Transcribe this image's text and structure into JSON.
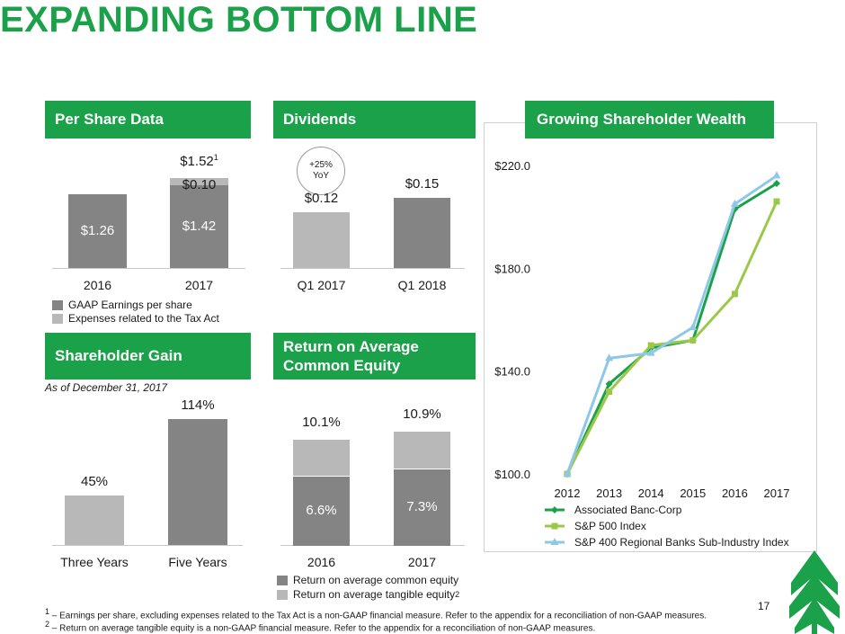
{
  "title": "EXPANDING BOTTOM LINE",
  "page_number": "17",
  "colors": {
    "brand_green": "#1aa14a",
    "dark_gray": "#848484",
    "light_gray": "#b8b8b8"
  },
  "sections": {
    "per_share": {
      "header": "Per Share Data",
      "total_label": "$1.52",
      "total_sup": "1",
      "legend": [
        "GAAP Earnings per share",
        "Expenses related to the Tax Act"
      ]
    },
    "dividends": {
      "header": "Dividends",
      "badge_line1": "+25%",
      "badge_line2": "YoY"
    },
    "shareholder_gain": {
      "header": "Shareholder Gain",
      "subtitle": "As of December 31, 2017"
    },
    "roe": {
      "header_line1": "Return on Average",
      "header_line2": "Common Equity",
      "legend": [
        "Return on average common equity",
        "Return on average tangible equity"
      ],
      "legend_sup": "2"
    },
    "wealth": {
      "header": "Growing Shareholder Wealth"
    }
  },
  "footnotes": [
    {
      "mark": "1",
      "text": "– Earnings per share, excluding expenses related to the Tax Act is a non-GAAP financial measure. Refer to the appendix for a reconciliation of non-GAAP measures."
    },
    {
      "mark": "2",
      "text": "– Return on average tangible equity is a non-GAAP financial measure. Refer to the appendix for a reconciliation of non-GAAP measures."
    }
  ],
  "chart_data": [
    {
      "type": "bar",
      "title": "Per Share Data",
      "categories": [
        "2016",
        "2017"
      ],
      "series": [
        {
          "name": "GAAP Earnings per share",
          "values": [
            1.26,
            1.42
          ],
          "labels": [
            "$1.26",
            "$1.42"
          ]
        },
        {
          "name": "Expenses related to the Tax Act",
          "values": [
            0,
            0.1
          ],
          "labels": [
            "",
            "$0.10"
          ]
        }
      ],
      "stacked": true
    },
    {
      "type": "bar",
      "title": "Dividends",
      "categories": [
        "Q1 2017",
        "Q1 2018"
      ],
      "values": [
        0.12,
        0.15
      ],
      "labels": [
        "$0.12",
        "$0.15"
      ]
    },
    {
      "type": "bar",
      "title": "Shareholder Gain",
      "categories": [
        "Three Years",
        "Five Years"
      ],
      "values": [
        45,
        114
      ],
      "labels": [
        "45%",
        "114%"
      ]
    },
    {
      "type": "bar",
      "title": "Return on Average Common Equity",
      "categories": [
        "2016",
        "2017"
      ],
      "series": [
        {
          "name": "Return on average common equity",
          "values": [
            6.6,
            7.3
          ],
          "labels": [
            "6.6%",
            "7.3%"
          ]
        },
        {
          "name": "Return on average tangible equity",
          "values": [
            10.1,
            10.9
          ],
          "labels": [
            "10.1%",
            "10.9%"
          ]
        }
      ],
      "stacked": false
    },
    {
      "type": "line",
      "title": "Growing Shareholder Wealth",
      "x": [
        "2012",
        "2013",
        "2014",
        "2015",
        "2016",
        "2017"
      ],
      "yticks": [
        "$100.0",
        "$140.0",
        "$180.0",
        "$220.0"
      ],
      "ylim": [
        100,
        220
      ],
      "legend": "bottom",
      "series": [
        {
          "name": "Associated Banc-Corp",
          "color": "#1aa14a",
          "marker": "diamond",
          "values": [
            100,
            135,
            149,
            152,
            203,
            213
          ]
        },
        {
          "name": "S&P 500 Index",
          "color": "#9cc84a",
          "marker": "square",
          "values": [
            100,
            132,
            150,
            152,
            170,
            206
          ]
        },
        {
          "name": "S&P 400 Regional Banks Sub-Industry Index",
          "color": "#8ec8e8",
          "marker": "triangle",
          "values": [
            100,
            145,
            147,
            157,
            205,
            216
          ]
        }
      ]
    }
  ]
}
